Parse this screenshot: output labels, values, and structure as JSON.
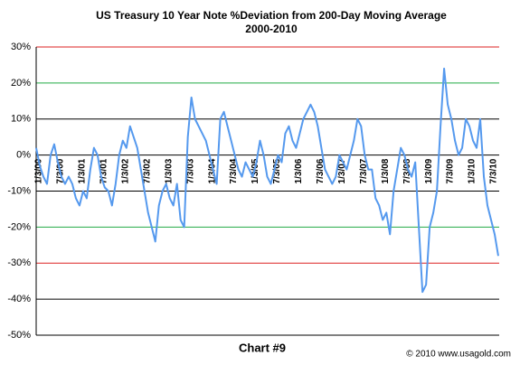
{
  "chart_data": {
    "type": "line",
    "title": "US Treasury 10 Year Note %Deviation from 200-Day Moving Average",
    "subtitle": "2000-2010",
    "caption": "Chart #9",
    "credit": "© 2010 www.usagold.com",
    "categories": [
      "1/3/00",
      null,
      null,
      null,
      null,
      null,
      "7/3/00",
      null,
      null,
      null,
      null,
      null,
      "1/3/01",
      null,
      null,
      null,
      null,
      null,
      "7/3/01",
      null,
      null,
      null,
      null,
      null,
      "1/3/02",
      null,
      null,
      null,
      null,
      null,
      "7/3/02",
      null,
      null,
      null,
      null,
      null,
      "1/3/03",
      null,
      null,
      null,
      null,
      null,
      "7/3/03",
      null,
      null,
      null,
      null,
      null,
      "1/3/04",
      null,
      null,
      null,
      null,
      null,
      "7/3/04",
      null,
      null,
      null,
      null,
      null,
      "1/3/05",
      null,
      null,
      null,
      null,
      null,
      "7/3/05",
      null,
      null,
      null,
      null,
      null,
      "1/3/06",
      null,
      null,
      null,
      null,
      null,
      "7/3/06",
      null,
      null,
      null,
      null,
      null,
      "1/3/07",
      null,
      null,
      null,
      null,
      null,
      "7/3/07",
      null,
      null,
      null,
      null,
      null,
      "1/3/08",
      null,
      null,
      null,
      null,
      null,
      "7/3/08",
      null,
      null,
      null,
      null,
      null,
      "1/3/09",
      null,
      null,
      null,
      null,
      null,
      "7/3/09",
      null,
      null,
      null,
      null,
      null,
      "1/3/10",
      null,
      null,
      null,
      null,
      null,
      "7/3/10",
      null,
      null
    ],
    "series": [
      {
        "color": "#5599ee",
        "values": [
          2,
          -3,
          -6,
          -8,
          0,
          3,
          -2,
          -6,
          -8,
          -6,
          -8,
          -12,
          -14,
          -10,
          -12,
          -4,
          2,
          0,
          -6,
          -9,
          -10,
          -14,
          -8,
          0,
          4,
          2,
          8,
          5,
          2,
          -4,
          -10,
          -16,
          -20,
          -24,
          -14,
          -10,
          -8,
          -12,
          -14,
          -8,
          -18,
          -20,
          5,
          16,
          10,
          8,
          6,
          4,
          0,
          -4,
          -8,
          10,
          12,
          8,
          4,
          0,
          -4,
          -6,
          -2,
          -4,
          -6,
          -2,
          4,
          0,
          -6,
          -8,
          -4,
          0,
          -2,
          6,
          8,
          4,
          2,
          6,
          10,
          12,
          14,
          12,
          8,
          2,
          -4,
          -6,
          -8,
          -6,
          0,
          -2,
          -4,
          0,
          4,
          10,
          8,
          0,
          -4,
          -4,
          -12,
          -14,
          -18,
          -16,
          -22,
          -10,
          -4,
          2,
          0,
          -4,
          -6,
          -2,
          -20,
          -38,
          -36,
          -20,
          -16,
          -10,
          8,
          24,
          14,
          10,
          4,
          0,
          2,
          10,
          8,
          4,
          2,
          10,
          -6,
          -14,
          -18,
          -22,
          -28
        ]
      }
    ],
    "ylim": [
      -50,
      30
    ],
    "yticks": [
      {
        "value": -50,
        "label": "-50%"
      },
      {
        "value": -40,
        "label": "-40%"
      },
      {
        "value": -30,
        "label": "-30%"
      },
      {
        "value": -20,
        "label": "-20%"
      },
      {
        "value": -10,
        "label": "-10%"
      },
      {
        "value": 0,
        "label": "0%"
      },
      {
        "value": 10,
        "label": "10%"
      },
      {
        "value": 20,
        "label": "20%"
      },
      {
        "value": 30,
        "label": "30%"
      }
    ],
    "grid": true,
    "grid_colors": [
      "#000000",
      "#000000",
      "#dd2222",
      "#22aa44",
      "#000000",
      "#000000",
      "#000000",
      "#22aa44",
      "#dd2222"
    ]
  }
}
